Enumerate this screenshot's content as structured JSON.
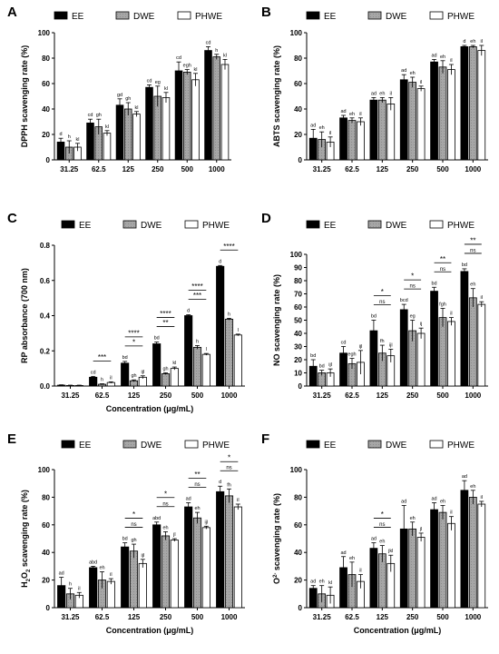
{
  "figure": {
    "legend_labels": [
      "EE",
      "DWE",
      "PHWE"
    ],
    "colors": {
      "EE": "#000000",
      "DWE": "#a6a6a6",
      "PHWE": "#ffffff"
    }
  },
  "chart_data": [
    {
      "panel": "A",
      "type": "bar",
      "categories": [
        "31.25",
        "62.5",
        "125",
        "250",
        "500",
        "1000"
      ],
      "ylabel": "DPPH scavenging rate (%)",
      "xlabel": "",
      "ylim": [
        0,
        100
      ],
      "yticks": [
        0,
        20,
        40,
        60,
        80,
        100
      ],
      "series": [
        {
          "name": "EE",
          "values": [
            14,
            29,
            43,
            57,
            70,
            86
          ],
          "errors": [
            3,
            3,
            5,
            2,
            7,
            3
          ],
          "letters": [
            "d",
            "cd",
            "gd",
            "cd",
            "cd",
            "cd"
          ]
        },
        {
          "name": "DWE",
          "values": [
            10,
            26,
            40,
            50,
            69,
            81
          ],
          "errors": [
            5,
            6,
            5,
            8,
            2,
            2
          ],
          "letters": [
            "h",
            "gh",
            "gh",
            "eg",
            "egh",
            "h"
          ]
        },
        {
          "name": "PHWE",
          "values": [
            10,
            21,
            36,
            49,
            63,
            75
          ],
          "errors": [
            3,
            2,
            2,
            4,
            5,
            4
          ],
          "letters": [
            "kl",
            "kl",
            "kl",
            "kl",
            "kl",
            "kl"
          ]
        }
      ],
      "significance": []
    },
    {
      "panel": "B",
      "type": "bar",
      "categories": [
        "31.25",
        "62.5",
        "125",
        "250",
        "500",
        "1000"
      ],
      "ylabel": "ABTS scavenging rate (%)",
      "xlabel": "",
      "ylim": [
        0,
        100
      ],
      "yticks": [
        0,
        20,
        40,
        60,
        80,
        100
      ],
      "series": [
        {
          "name": "EE",
          "values": [
            17,
            33,
            47,
            63,
            77,
            89
          ],
          "errors": [
            7,
            2,
            2,
            4,
            2,
            1
          ],
          "letters": [
            "ad",
            "ad",
            "ad",
            "ad",
            "ad",
            "d"
          ]
        },
        {
          "name": "DWE",
          "values": [
            16,
            31,
            47,
            61,
            73,
            89
          ],
          "errors": [
            6,
            2,
            2,
            4,
            5,
            1
          ],
          "letters": [
            "eh",
            "eh",
            "eh",
            "eh",
            "eh",
            "eh"
          ]
        },
        {
          "name": "PHWE",
          "values": [
            14,
            30,
            44,
            56,
            71,
            86
          ],
          "errors": [
            4,
            3,
            5,
            2,
            4,
            4
          ],
          "letters": [
            "il",
            "il",
            "il",
            "il",
            "il",
            "il"
          ]
        }
      ],
      "significance": []
    },
    {
      "panel": "C",
      "type": "bar",
      "categories": [
        "31.25",
        "62.5",
        "125",
        "250",
        "500",
        "1000"
      ],
      "ylabel": "RP absorbance (700 nm)",
      "xlabel": "Concentration (μg/mL)",
      "ylim": [
        0,
        0.8
      ],
      "yticks": [
        0.0,
        0.2,
        0.4,
        0.6,
        0.8
      ],
      "series": [
        {
          "name": "EE",
          "values": [
            0.005,
            0.05,
            0.13,
            0.24,
            0.4,
            0.68
          ],
          "errors": [
            0.002,
            0.005,
            0.01,
            0.01,
            0.005,
            0.005
          ],
          "letters": [
            "",
            "cd",
            "bd",
            "bd",
            "d",
            "d"
          ]
        },
        {
          "name": "DWE",
          "values": [
            0.003,
            0.01,
            0.03,
            0.07,
            0.22,
            0.38
          ],
          "errors": [
            0.002,
            0.003,
            0.005,
            0.005,
            0.01,
            0.005
          ],
          "letters": [
            "",
            "h",
            "gh",
            "gh",
            "h",
            "h"
          ]
        },
        {
          "name": "PHWE",
          "values": [
            0.003,
            0.02,
            0.05,
            0.1,
            0.18,
            0.29
          ],
          "errors": [
            0.002,
            0.004,
            0.008,
            0.008,
            0.005,
            0.005
          ],
          "letters": [
            "",
            "il",
            "ijl",
            "kl",
            "l",
            "l"
          ]
        }
      ],
      "significance": [
        {
          "category": "62.5",
          "pairs": [
            "***"
          ]
        },
        {
          "category": "125",
          "pairs": [
            "****",
            "*"
          ]
        },
        {
          "category": "250",
          "pairs": [
            "****",
            "**"
          ]
        },
        {
          "category": "500",
          "pairs": [
            "****",
            "***"
          ]
        },
        {
          "category": "1000",
          "pairs": [
            "****"
          ]
        }
      ]
    },
    {
      "panel": "D",
      "type": "bar",
      "categories": [
        "31.25",
        "62.5",
        "125",
        "250",
        "500",
        "1000"
      ],
      "ylabel": "NO scavenging rate (%)",
      "xlabel": "",
      "ylim": [
        0,
        100
      ],
      "yticks": [
        0,
        10,
        20,
        30,
        40,
        50,
        60,
        70,
        80,
        90,
        100
      ],
      "series": [
        {
          "name": "EE",
          "values": [
            15,
            25,
            42,
            58,
            72,
            87
          ],
          "errors": [
            5,
            5,
            8,
            4,
            3,
            2
          ],
          "letters": [
            "bd",
            "cd",
            "bd",
            "bcd",
            "bd",
            "bd"
          ]
        },
        {
          "name": "DWE",
          "values": [
            10,
            17,
            25,
            42,
            52,
            67
          ],
          "errors": [
            2,
            4,
            6,
            8,
            7,
            7
          ],
          "letters": [
            "bd",
            "egh",
            "fh",
            "eg",
            "fgh",
            "eh"
          ]
        },
        {
          "name": "PHWE",
          "values": [
            10,
            18,
            23,
            40,
            49,
            62
          ],
          "errors": [
            3,
            9,
            5,
            4,
            3,
            2
          ],
          "letters": [
            "ijl",
            "ijl",
            "ijl",
            "ij",
            "il",
            "il"
          ]
        }
      ],
      "significance": [
        {
          "category": "125",
          "pairs": [
            "*",
            "ns"
          ]
        },
        {
          "category": "250",
          "pairs": [
            "*",
            "ns"
          ]
        },
        {
          "category": "500",
          "pairs": [
            "**",
            "ns"
          ]
        },
        {
          "category": "1000",
          "pairs": [
            "**",
            "ns"
          ]
        }
      ]
    },
    {
      "panel": "E",
      "type": "bar",
      "categories": [
        "31.25",
        "62.5",
        "125",
        "250",
        "500",
        "1000"
      ],
      "ylabel": "H2O2 scavenging rate (%)",
      "xlabel": "Concentration (μg/mL)",
      "ylim": [
        0,
        100
      ],
      "yticks": [
        0,
        20,
        40,
        60,
        80,
        100
      ],
      "series": [
        {
          "name": "EE",
          "values": [
            16,
            29,
            44,
            60,
            73,
            84
          ],
          "errors": [
            6,
            1,
            3,
            2,
            3,
            4
          ],
          "letters": [
            "ad",
            "abd",
            "bd",
            "abd",
            "ad",
            "d"
          ]
        },
        {
          "name": "DWE",
          "values": [
            10,
            20,
            41,
            52,
            65,
            81
          ],
          "errors": [
            4,
            6,
            5,
            3,
            4,
            5
          ],
          "letters": [
            "h",
            "eh",
            "gh",
            "eh",
            "eh",
            "fh"
          ]
        },
        {
          "name": "PHWE",
          "values": [
            9,
            19,
            32,
            49,
            58,
            73
          ],
          "errors": [
            2,
            2,
            3,
            1,
            1,
            2
          ],
          "letters": [
            "il",
            "il",
            "ijl",
            "jl",
            "ijl",
            "il"
          ]
        }
      ],
      "significance": [
        {
          "category": "125",
          "pairs": [
            "*",
            "ns"
          ]
        },
        {
          "category": "250",
          "pairs": [
            "*",
            "ns"
          ]
        },
        {
          "category": "500",
          "pairs": [
            "**",
            "ns"
          ]
        },
        {
          "category": "1000",
          "pairs": [
            "*",
            "ns"
          ]
        }
      ]
    },
    {
      "panel": "F",
      "type": "bar",
      "categories": [
        "31.25",
        "62.5",
        "125",
        "250",
        "500",
        "1000"
      ],
      "ylabel": "O2- scavenging rate (%)",
      "xlabel": "Concentration (μg/mL)",
      "ylim": [
        0,
        100
      ],
      "yticks": [
        0,
        20,
        40,
        60,
        80,
        100
      ],
      "series": [
        {
          "name": "EE",
          "values": [
            14,
            29,
            43,
            57,
            71,
            85
          ],
          "errors": [
            2,
            8,
            4,
            17,
            5,
            7
          ],
          "letters": [
            "ad",
            "ad",
            "ad",
            "ad",
            "ad",
            "ad"
          ]
        },
        {
          "name": "DWE",
          "values": [
            10,
            24,
            39,
            57,
            69,
            80
          ],
          "errors": [
            6,
            9,
            6,
            5,
            5,
            5
          ],
          "letters": [
            "eh",
            "eh",
            "eh",
            "eh",
            "eh",
            "eh"
          ]
        },
        {
          "name": "PHWE",
          "values": [
            9,
            19,
            32,
            51,
            61,
            75
          ],
          "errors": [
            6,
            5,
            6,
            3,
            5,
            2
          ],
          "letters": [
            "kl",
            "il",
            "jkl",
            "jl",
            "il",
            "il"
          ]
        }
      ],
      "significance": [
        {
          "category": "125",
          "pairs": [
            "*",
            "ns"
          ]
        }
      ]
    }
  ]
}
